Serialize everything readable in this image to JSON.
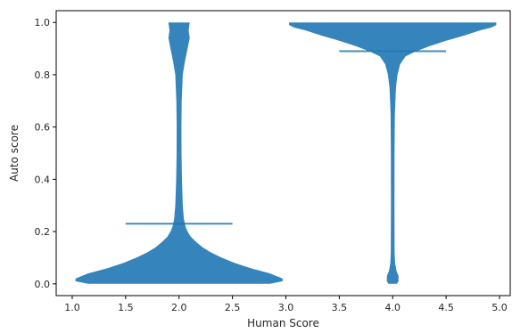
{
  "chart_data": {
    "type": "violin",
    "xlabel": "Human Score",
    "ylabel": "Auto score",
    "xlim": [
      0.85,
      5.1
    ],
    "ylim": [
      -0.045,
      1.045
    ],
    "xticks": [
      1.0,
      1.5,
      2.0,
      2.5,
      3.0,
      3.5,
      4.0,
      4.5,
      5.0
    ],
    "xtick_labels": [
      "1.0",
      "1.5",
      "2.0",
      "2.5",
      "3.0",
      "3.5",
      "4.0",
      "4.5",
      "5.0"
    ],
    "yticks": [
      0.0,
      0.2,
      0.4,
      0.6,
      0.8,
      1.0
    ],
    "ytick_labels": [
      "0.0",
      "0.2",
      "0.4",
      "0.6",
      "0.8",
      "1.0"
    ],
    "grid": false,
    "color": "#1f77b4",
    "violins": [
      {
        "position": 2.0,
        "median": 0.23,
        "median_halfwidth": 0.5,
        "profile": [
          [
            0.0,
            0.85
          ],
          [
            0.01,
            0.97
          ],
          [
            0.02,
            0.97
          ],
          [
            0.04,
            0.85
          ],
          [
            0.06,
            0.67
          ],
          [
            0.08,
            0.52
          ],
          [
            0.1,
            0.4
          ],
          [
            0.12,
            0.3
          ],
          [
            0.14,
            0.22
          ],
          [
            0.16,
            0.16
          ],
          [
            0.18,
            0.11
          ],
          [
            0.2,
            0.08
          ],
          [
            0.22,
            0.06
          ],
          [
            0.25,
            0.045
          ],
          [
            0.3,
            0.035
          ],
          [
            0.4,
            0.027
          ],
          [
            0.5,
            0.023
          ],
          [
            0.6,
            0.022
          ],
          [
            0.7,
            0.025
          ],
          [
            0.8,
            0.035
          ],
          [
            0.85,
            0.055
          ],
          [
            0.9,
            0.08
          ],
          [
            0.94,
            0.1
          ],
          [
            0.97,
            0.09
          ],
          [
            1.0,
            0.1
          ]
        ]
      },
      {
        "position": 4.0,
        "median": 0.89,
        "median_halfwidth": 0.5,
        "profile": [
          [
            0.0,
            0.04
          ],
          [
            0.01,
            0.055
          ],
          [
            0.03,
            0.055
          ],
          [
            0.05,
            0.035
          ],
          [
            0.08,
            0.022
          ],
          [
            0.12,
            0.018
          ],
          [
            0.3,
            0.016
          ],
          [
            0.5,
            0.017
          ],
          [
            0.65,
            0.02
          ],
          [
            0.75,
            0.03
          ],
          [
            0.8,
            0.045
          ],
          [
            0.84,
            0.07
          ],
          [
            0.87,
            0.12
          ],
          [
            0.89,
            0.22
          ],
          [
            0.91,
            0.35
          ],
          [
            0.93,
            0.5
          ],
          [
            0.95,
            0.67
          ],
          [
            0.97,
            0.82
          ],
          [
            0.98,
            0.92
          ],
          [
            0.99,
            0.97
          ],
          [
            1.0,
            0.97
          ]
        ]
      }
    ]
  }
}
